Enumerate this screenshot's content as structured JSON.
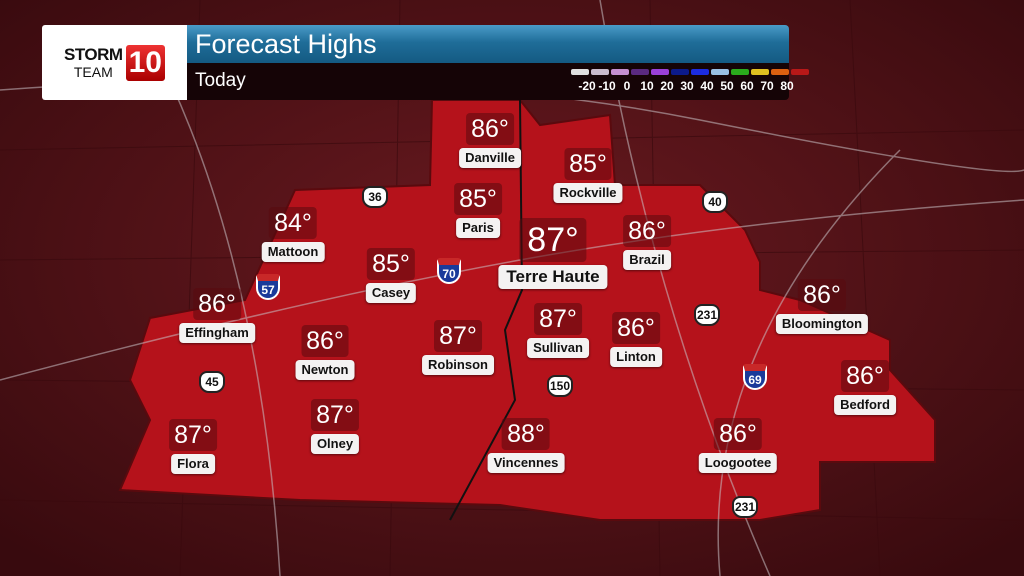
{
  "header": {
    "logo": "STORM TEAM 10",
    "title": "Forecast Highs",
    "subtitle": "Today"
  },
  "legend": {
    "colors": [
      "#e0e0e0",
      "#c9bccd",
      "#c48fd0",
      "#5a2a80",
      "#9b40d8",
      "#0c1a8a",
      "#1c2ce0",
      "#9ac0e4",
      "#2aaa1c",
      "#e0c020",
      "#dc6010",
      "#b81818"
    ],
    "ticks": [
      "-20",
      "-10",
      "0",
      "10",
      "20",
      "30",
      "40",
      "50",
      "60",
      "70",
      "80"
    ]
  },
  "map": {
    "region_color": "#b5121b",
    "background_color": "#4a0f14"
  },
  "cities": [
    {
      "name": "Danville",
      "temp": "86°"
    },
    {
      "name": "Rockville",
      "temp": "85°"
    },
    {
      "name": "Paris",
      "temp": "85°"
    },
    {
      "name": "Terre Haute",
      "temp": "87°"
    },
    {
      "name": "Mattoon",
      "temp": "84°"
    },
    {
      "name": "Casey",
      "temp": "85°"
    },
    {
      "name": "Brazil",
      "temp": "86°"
    },
    {
      "name": "Effingham",
      "temp": "86°"
    },
    {
      "name": "Newton",
      "temp": "86°"
    },
    {
      "name": "Robinson",
      "temp": "87°"
    },
    {
      "name": "Sullivan",
      "temp": "87°"
    },
    {
      "name": "Linton",
      "temp": "86°"
    },
    {
      "name": "Bloomington",
      "temp": "86°"
    },
    {
      "name": "Bedford",
      "temp": "86°"
    },
    {
      "name": "Flora",
      "temp": "87°"
    },
    {
      "name": "Olney",
      "temp": "87°"
    },
    {
      "name": "Vincennes",
      "temp": "88°"
    },
    {
      "name": "Loogootee",
      "temp": "86°"
    }
  ],
  "highways": [
    {
      "type": "interstate",
      "num": "57"
    },
    {
      "type": "interstate",
      "num": "70"
    },
    {
      "type": "interstate",
      "num": "69"
    },
    {
      "type": "us",
      "num": "36"
    },
    {
      "type": "us",
      "num": "40"
    },
    {
      "type": "us",
      "num": "231"
    },
    {
      "type": "us",
      "num": "150"
    },
    {
      "type": "us",
      "num": "45"
    },
    {
      "type": "us",
      "num": "231"
    }
  ]
}
